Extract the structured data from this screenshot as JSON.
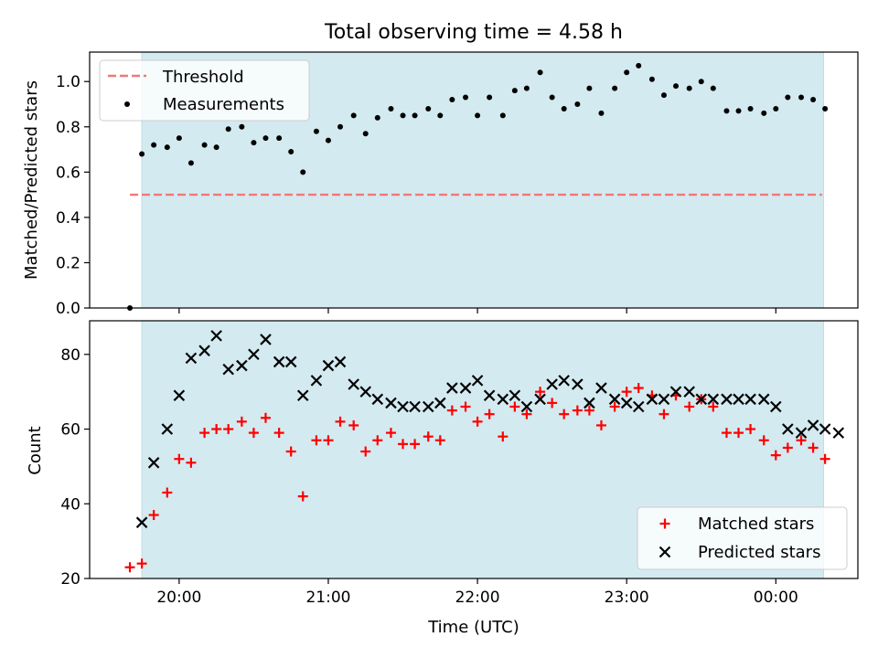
{
  "figure": {
    "title": "Total observing time = 4.58 h"
  },
  "colors": {
    "shade": "#d3eaf0",
    "threshold": "#f07878",
    "measurement": "#000000",
    "matched": "#ff0000",
    "predicted": "#000000"
  },
  "chart_data": [
    {
      "type": "scatter",
      "title": "Total observing time = 4.58 h",
      "xlabel": "",
      "ylabel": "Matched/Predicted stars",
      "x_unit": "hours after 19:00 UTC",
      "xlim": [
        19.4,
        24.55
      ],
      "ylim": [
        0.0,
        1.13
      ],
      "yticks": [
        "0.0",
        "0.2",
        "0.4",
        "0.6",
        "0.8",
        "1.0"
      ],
      "shaded_span": [
        19.75,
        24.32
      ],
      "legend_position": "upper left",
      "threshold": {
        "name": "Threshold",
        "y": 0.5,
        "x_range": [
          19.67,
          24.31
        ]
      },
      "series": [
        {
          "name": "Measurements",
          "marker": "dot",
          "points": [
            [
              19.67,
              0.0
            ],
            [
              19.75,
              0.68
            ],
            [
              19.83,
              0.72
            ],
            [
              19.92,
              0.71
            ],
            [
              20.0,
              0.75
            ],
            [
              20.08,
              0.64
            ],
            [
              20.17,
              0.72
            ],
            [
              20.25,
              0.71
            ],
            [
              20.33,
              0.79
            ],
            [
              20.42,
              0.8
            ],
            [
              20.5,
              0.73
            ],
            [
              20.58,
              0.75
            ],
            [
              20.67,
              0.75
            ],
            [
              20.75,
              0.69
            ],
            [
              20.83,
              0.6
            ],
            [
              20.92,
              0.78
            ],
            [
              21.0,
              0.74
            ],
            [
              21.08,
              0.8
            ],
            [
              21.17,
              0.85
            ],
            [
              21.25,
              0.77
            ],
            [
              21.33,
              0.84
            ],
            [
              21.42,
              0.88
            ],
            [
              21.5,
              0.85
            ],
            [
              21.58,
              0.85
            ],
            [
              21.67,
              0.88
            ],
            [
              21.75,
              0.85
            ],
            [
              21.83,
              0.92
            ],
            [
              21.92,
              0.93
            ],
            [
              22.0,
              0.85
            ],
            [
              22.08,
              0.93
            ],
            [
              22.17,
              0.85
            ],
            [
              22.25,
              0.96
            ],
            [
              22.33,
              0.97
            ],
            [
              22.42,
              1.04
            ],
            [
              22.5,
              0.93
            ],
            [
              22.58,
              0.88
            ],
            [
              22.67,
              0.9
            ],
            [
              22.75,
              0.97
            ],
            [
              22.83,
              0.86
            ],
            [
              22.92,
              0.97
            ],
            [
              23.0,
              1.04
            ],
            [
              23.08,
              1.07
            ],
            [
              23.17,
              1.01
            ],
            [
              23.25,
              0.94
            ],
            [
              23.33,
              0.98
            ],
            [
              23.42,
              0.97
            ],
            [
              23.5,
              1.0
            ],
            [
              23.58,
              0.97
            ],
            [
              23.67,
              0.87
            ],
            [
              23.75,
              0.87
            ],
            [
              23.83,
              0.88
            ],
            [
              23.92,
              0.86
            ],
            [
              24.0,
              0.88
            ],
            [
              24.08,
              0.93
            ],
            [
              24.17,
              0.93
            ],
            [
              24.25,
              0.92
            ],
            [
              24.33,
              0.88
            ]
          ]
        }
      ]
    },
    {
      "type": "scatter",
      "title": "",
      "xlabel": "Time (UTC)",
      "ylabel": "Count",
      "x_unit": "hours after 19:00 UTC",
      "xlim": [
        19.4,
        24.55
      ],
      "ylim": [
        20,
        89
      ],
      "yticks": [
        "20",
        "40",
        "60",
        "80"
      ],
      "xticks": [
        {
          "value": 20,
          "label": "20:00"
        },
        {
          "value": 21,
          "label": "21:00"
        },
        {
          "value": 22,
          "label": "22:00"
        },
        {
          "value": 23,
          "label": "23:00"
        },
        {
          "value": 24,
          "label": "00:00"
        }
      ],
      "shaded_span": [
        19.75,
        24.32
      ],
      "legend_position": "lower right",
      "series": [
        {
          "name": "Matched stars",
          "marker": "plus",
          "points": [
            [
              19.67,
              23
            ],
            [
              19.75,
              24
            ],
            [
              19.83,
              37
            ],
            [
              19.92,
              43
            ],
            [
              20.0,
              52
            ],
            [
              20.08,
              51
            ],
            [
              20.17,
              59
            ],
            [
              20.25,
              60
            ],
            [
              20.33,
              60
            ],
            [
              20.42,
              62
            ],
            [
              20.5,
              59
            ],
            [
              20.58,
              63
            ],
            [
              20.67,
              59
            ],
            [
              20.75,
              54
            ],
            [
              20.83,
              42
            ],
            [
              20.92,
              57
            ],
            [
              21.0,
              57
            ],
            [
              21.08,
              62
            ],
            [
              21.17,
              61
            ],
            [
              21.25,
              54
            ],
            [
              21.33,
              57
            ],
            [
              21.42,
              59
            ],
            [
              21.5,
              56
            ],
            [
              21.58,
              56
            ],
            [
              21.67,
              58
            ],
            [
              21.75,
              57
            ],
            [
              21.83,
              65
            ],
            [
              21.92,
              66
            ],
            [
              22.0,
              62
            ],
            [
              22.08,
              64
            ],
            [
              22.17,
              58
            ],
            [
              22.25,
              66
            ],
            [
              22.33,
              64
            ],
            [
              22.42,
              70
            ],
            [
              22.5,
              67
            ],
            [
              22.58,
              64
            ],
            [
              22.67,
              65
            ],
            [
              22.75,
              65
            ],
            [
              22.83,
              61
            ],
            [
              22.92,
              66
            ],
            [
              23.0,
              70
            ],
            [
              23.08,
              71
            ],
            [
              23.17,
              69
            ],
            [
              23.25,
              64
            ],
            [
              23.33,
              69
            ],
            [
              23.42,
              66
            ],
            [
              23.5,
              68
            ],
            [
              23.58,
              66
            ],
            [
              23.67,
              59
            ],
            [
              23.75,
              59
            ],
            [
              23.83,
              60
            ],
            [
              23.92,
              57
            ],
            [
              24.0,
              53
            ],
            [
              24.08,
              55
            ],
            [
              24.17,
              57
            ],
            [
              24.25,
              55
            ],
            [
              24.33,
              52
            ]
          ]
        },
        {
          "name": "Predicted stars",
          "marker": "x",
          "points": [
            [
              19.75,
              35
            ],
            [
              19.83,
              51
            ],
            [
              19.92,
              60
            ],
            [
              20.0,
              69
            ],
            [
              20.08,
              79
            ],
            [
              20.17,
              81
            ],
            [
              20.25,
              85
            ],
            [
              20.33,
              76
            ],
            [
              20.42,
              77
            ],
            [
              20.5,
              80
            ],
            [
              20.58,
              84
            ],
            [
              20.67,
              78
            ],
            [
              20.75,
              78
            ],
            [
              20.83,
              69
            ],
            [
              20.92,
              73
            ],
            [
              21.0,
              77
            ],
            [
              21.08,
              78
            ],
            [
              21.17,
              72
            ],
            [
              21.25,
              70
            ],
            [
              21.33,
              68
            ],
            [
              21.42,
              67
            ],
            [
              21.5,
              66
            ],
            [
              21.58,
              66
            ],
            [
              21.67,
              66
            ],
            [
              21.75,
              67
            ],
            [
              21.83,
              71
            ],
            [
              21.92,
              71
            ],
            [
              22.0,
              73
            ],
            [
              22.08,
              69
            ],
            [
              22.17,
              68
            ],
            [
              22.25,
              69
            ],
            [
              22.33,
              66
            ],
            [
              22.42,
              68
            ],
            [
              22.5,
              72
            ],
            [
              22.58,
              73
            ],
            [
              22.67,
              72
            ],
            [
              22.75,
              67
            ],
            [
              22.83,
              71
            ],
            [
              22.92,
              68
            ],
            [
              23.0,
              67
            ],
            [
              23.08,
              66
            ],
            [
              23.17,
              68
            ],
            [
              23.25,
              68
            ],
            [
              23.33,
              70
            ],
            [
              23.42,
              70
            ],
            [
              23.5,
              68
            ],
            [
              23.58,
              68
            ],
            [
              23.67,
              68
            ],
            [
              23.75,
              68
            ],
            [
              23.83,
              68
            ],
            [
              23.92,
              68
            ],
            [
              24.0,
              66
            ],
            [
              24.08,
              60
            ],
            [
              24.17,
              59
            ],
            [
              24.25,
              61
            ],
            [
              24.33,
              60
            ],
            [
              24.42,
              59
            ]
          ]
        }
      ]
    }
  ]
}
